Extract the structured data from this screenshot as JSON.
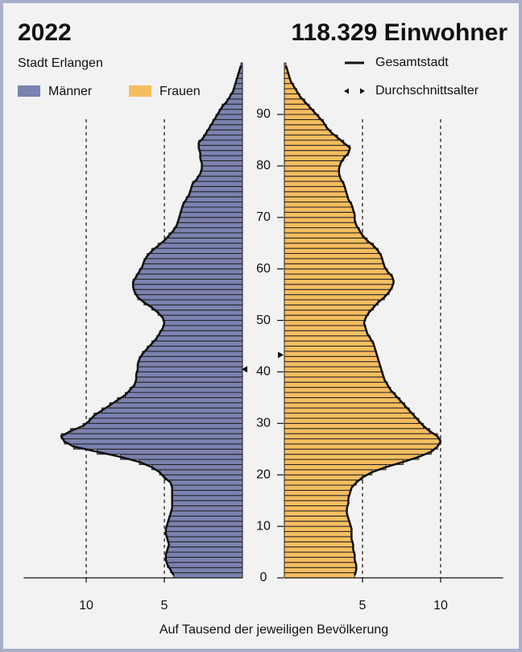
{
  "chart_data": {
    "type": "pyramid",
    "title": "2022",
    "subtitle": "118.329 Einwohner",
    "region": "Stadt Erlangen",
    "x_label": "Auf Tausend der jeweiligen Bevölkerung",
    "outline_label": "Gesamtstadt",
    "mean_label": "Durchschnittsalter",
    "categories": [
      0,
      1,
      2,
      3,
      4,
      5,
      6,
      7,
      8,
      9,
      10,
      11,
      12,
      13,
      14,
      15,
      16,
      17,
      18,
      19,
      20,
      21,
      22,
      23,
      24,
      25,
      26,
      27,
      28,
      29,
      30,
      31,
      32,
      33,
      34,
      35,
      36,
      37,
      38,
      39,
      40,
      41,
      42,
      43,
      44,
      45,
      46,
      47,
      48,
      49,
      50,
      51,
      52,
      53,
      54,
      55,
      56,
      57,
      58,
      59,
      60,
      61,
      62,
      63,
      64,
      65,
      66,
      67,
      68,
      69,
      70,
      71,
      72,
      73,
      74,
      75,
      76,
      77,
      78,
      79,
      80,
      81,
      82,
      83,
      84,
      85,
      86,
      87,
      88,
      89,
      90,
      91,
      92,
      93,
      94,
      95,
      96,
      97,
      98,
      99
    ],
    "series": [
      {
        "name": "Männer",
        "color": "#7b82b0",
        "side": "left",
        "mean_age": 40.5,
        "values": [
          4.4,
          4.6,
          4.8,
          4.9,
          4.9,
          4.8,
          4.7,
          4.8,
          4.9,
          4.9,
          4.8,
          4.7,
          4.6,
          4.5,
          4.5,
          4.5,
          4.5,
          4.5,
          4.6,
          5.0,
          5.3,
          5.8,
          6.6,
          7.8,
          9.3,
          10.8,
          11.4,
          11.6,
          11.0,
          10.2,
          9.8,
          9.5,
          9.0,
          8.5,
          8.0,
          7.5,
          7.2,
          6.9,
          6.8,
          6.8,
          6.7,
          6.7,
          6.6,
          6.4,
          6.1,
          5.8,
          5.5,
          5.3,
          5.1,
          5.0,
          5.1,
          5.4,
          5.8,
          6.3,
          6.7,
          6.9,
          7.0,
          7.0,
          6.8,
          6.6,
          6.4,
          6.3,
          6.1,
          5.8,
          5.4,
          5.0,
          4.7,
          4.4,
          4.2,
          4.1,
          4.0,
          3.9,
          3.8,
          3.6,
          3.4,
          3.3,
          3.2,
          2.9,
          2.7,
          2.6,
          2.6,
          2.7,
          2.7,
          2.8,
          2.8,
          2.5,
          2.3,
          2.1,
          1.9,
          1.7,
          1.5,
          1.3,
          1.0,
          0.8,
          0.6,
          0.5,
          0.4,
          0.3,
          0.2,
          0.1
        ]
      },
      {
        "name": "Frauen",
        "color": "#f5bd5f",
        "side": "right",
        "mean_age": 43.3,
        "values": [
          4.5,
          4.6,
          4.6,
          4.5,
          4.5,
          4.4,
          4.4,
          4.3,
          4.3,
          4.3,
          4.2,
          4.1,
          4.0,
          4.0,
          4.1,
          4.1,
          4.2,
          4.3,
          4.6,
          5.0,
          5.6,
          6.5,
          7.6,
          8.6,
          9.4,
          9.8,
          10.0,
          9.8,
          9.3,
          8.9,
          8.6,
          8.3,
          8.0,
          7.7,
          7.4,
          7.1,
          6.8,
          6.6,
          6.4,
          6.3,
          6.2,
          6.1,
          6.0,
          5.9,
          5.8,
          5.7,
          5.5,
          5.3,
          5.2,
          5.1,
          5.2,
          5.4,
          5.7,
          6.0,
          6.4,
          6.7,
          6.9,
          7.0,
          6.9,
          6.6,
          6.4,
          6.3,
          6.2,
          6.0,
          5.7,
          5.3,
          5.0,
          4.8,
          4.6,
          4.5,
          4.5,
          4.4,
          4.3,
          4.1,
          4.0,
          3.9,
          3.8,
          3.6,
          3.5,
          3.5,
          3.6,
          3.8,
          4.1,
          4.2,
          3.8,
          3.4,
          3.0,
          2.7,
          2.5,
          2.2,
          1.9,
          1.6,
          1.3,
          1.0,
          0.8,
          0.6,
          0.4,
          0.3,
          0.2,
          0.1
        ]
      }
    ],
    "xlim": [
      0,
      14
    ],
    "xticks": [
      5,
      10
    ],
    "ylim": [
      0,
      100
    ],
    "yticks": [
      0,
      10,
      20,
      30,
      40,
      50,
      60,
      70,
      80,
      90
    ],
    "grid": true
  }
}
